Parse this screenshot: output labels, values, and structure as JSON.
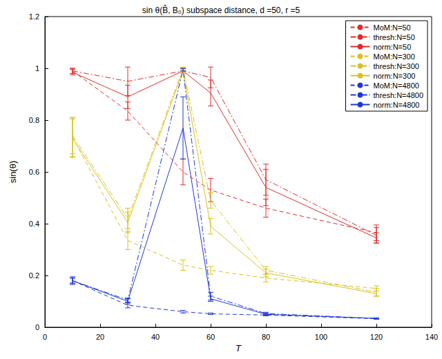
{
  "chart_data": {
    "type": "line",
    "title": "sin θ(B̂, B₀) subspace distance, d =50, r =5",
    "x_label": "T",
    "y_label": "sin(θ)",
    "x": [
      10,
      30,
      50,
      60,
      80,
      120
    ],
    "xlim": [
      0,
      140
    ],
    "xticks": [
      0,
      20,
      40,
      60,
      80,
      100,
      120,
      140
    ],
    "ylim": [
      0,
      1.2
    ],
    "yticks": [
      0,
      0.2,
      0.4,
      0.6,
      0.8,
      1,
      1.2
    ],
    "grid": false,
    "legend": "upper right",
    "series": [
      {
        "name": "MoM:N=50",
        "color": "#e02a2a",
        "line_style": "dashed",
        "values": [
          0.99,
          0.835,
          0.6,
          0.53,
          0.46,
          0.365
        ],
        "errors": [
          0.01,
          0.035,
          0.05,
          0.045,
          0.035,
          0.03
        ]
      },
      {
        "name": "thresh:N=50",
        "color": "#e02a2a",
        "line_style": "dashdot",
        "values": [
          0.99,
          0.95,
          0.99,
          0.965,
          0.57,
          0.355
        ],
        "errors": [
          0.01,
          0.055,
          0.01,
          0.04,
          0.06,
          0.03
        ]
      },
      {
        "name": "norm:N=50",
        "color": "#e02a2a",
        "line_style": "solid",
        "values": [
          0.985,
          0.89,
          0.99,
          0.905,
          0.54,
          0.345
        ],
        "errors": [
          0.01,
          0.045,
          0.01,
          0.05,
          0.07,
          0.02
        ]
      },
      {
        "name": "MoM:N=300",
        "color": "#d9c01c",
        "line_style": "dashed",
        "values": [
          0.735,
          0.335,
          0.24,
          0.22,
          0.19,
          0.15
        ],
        "errors": [
          0.075,
          0.035,
          0.02,
          0.015,
          0.015,
          0.01
        ]
      },
      {
        "name": "thresh:N=300",
        "color": "#d9c01c",
        "line_style": "dashdot",
        "values": [
          0.74,
          0.42,
          1.0,
          0.49,
          0.22,
          0.135
        ],
        "errors": [
          0.07,
          0.04,
          0.005,
          0.03,
          0.015,
          0.015
        ]
      },
      {
        "name": "norm:N=300",
        "color": "#d9c01c",
        "line_style": "solid",
        "values": [
          0.73,
          0.405,
          0.99,
          0.39,
          0.21,
          0.13
        ],
        "errors": [
          0.075,
          0.04,
          0.01,
          0.03,
          0.015,
          0.01
        ]
      },
      {
        "name": "MoM:N=4800",
        "color": "#1f37d6",
        "line_style": "dashed",
        "values": [
          0.18,
          0.085,
          0.06,
          0.052,
          0.047,
          0.033
        ],
        "errors": [
          0.01,
          0.01,
          0.005,
          0.003,
          0.003,
          0.002
        ]
      },
      {
        "name": "thresh:N=4800",
        "color": "#1f37d6",
        "line_style": "dashdot",
        "values": [
          0.18,
          0.105,
          0.995,
          0.12,
          0.053,
          0.034
        ],
        "errors": [
          0.01,
          0.008,
          0.005,
          0.015,
          0.005,
          0.002
        ]
      },
      {
        "name": "norm:N=4800",
        "color": "#1f37d6",
        "line_style": "solid",
        "values": [
          0.18,
          0.1,
          0.77,
          0.11,
          0.05,
          0.034
        ],
        "errors": [
          0.015,
          0.01,
          0.12,
          0.01,
          0.004,
          0.002
        ]
      }
    ]
  }
}
